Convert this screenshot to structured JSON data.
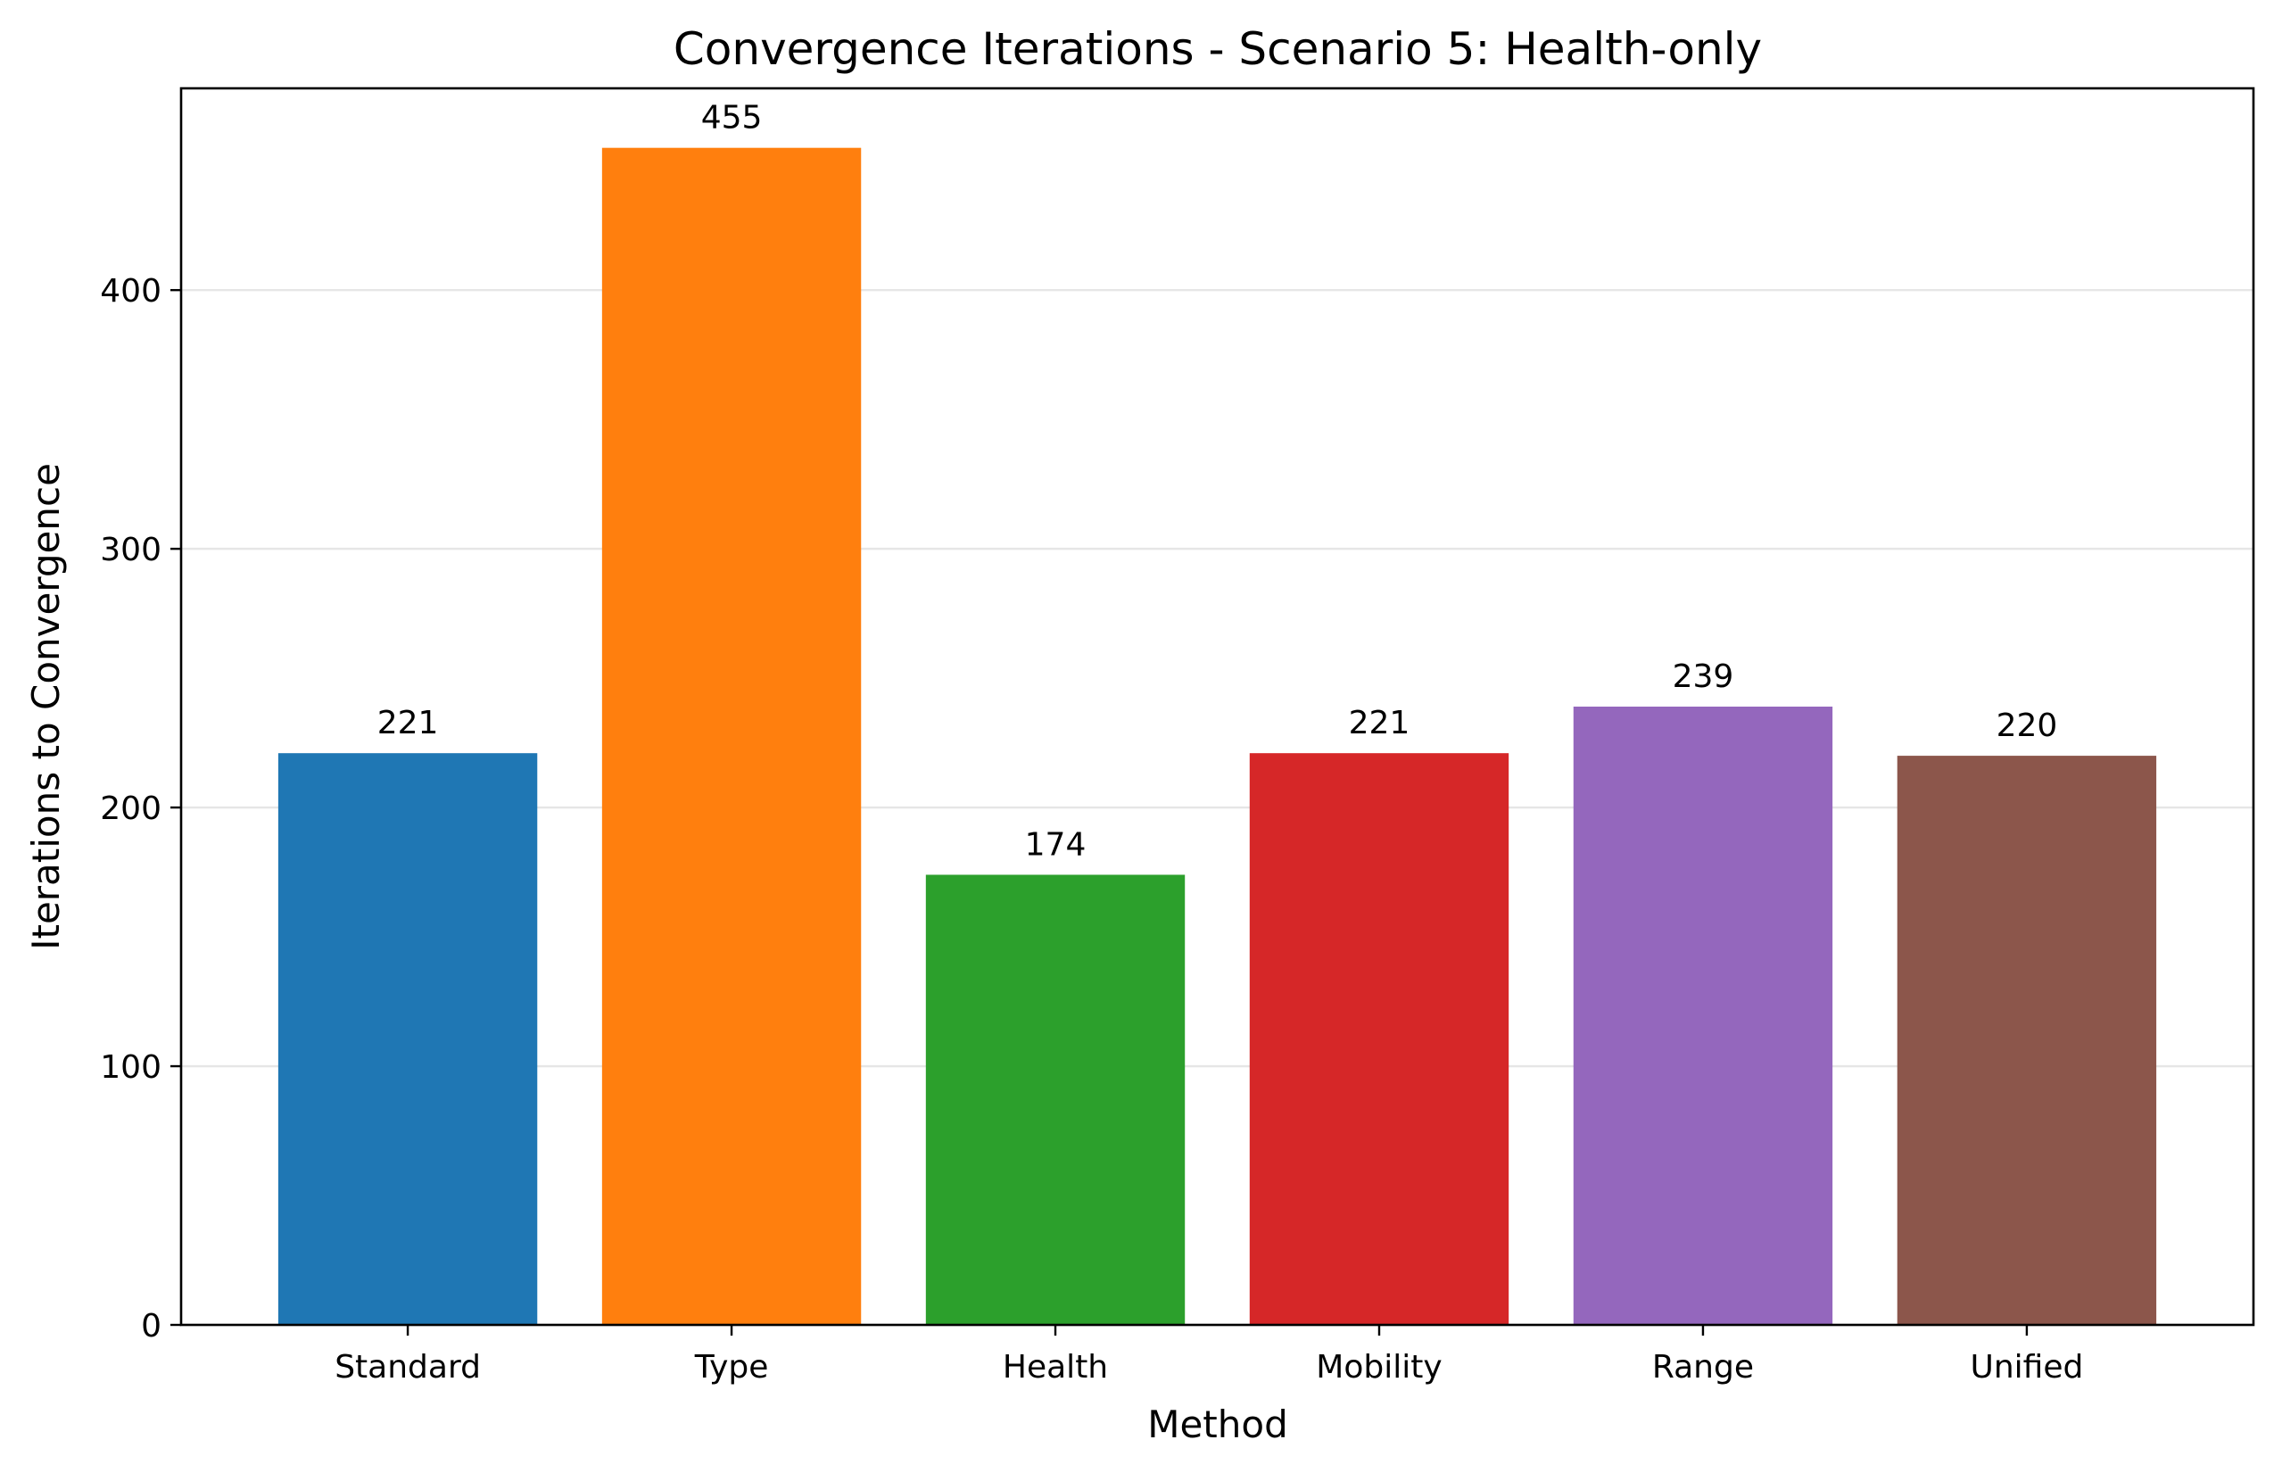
{
  "chart_data": {
    "type": "bar",
    "title": "Convergence Iterations - Scenario 5: Health-only",
    "xlabel": "Method",
    "ylabel": "Iterations to Convergence",
    "categories": [
      "Standard",
      "Type",
      "Health",
      "Mobility",
      "Range",
      "Unified"
    ],
    "values": [
      221,
      455,
      174,
      221,
      239,
      220
    ],
    "value_labels": [
      "221",
      "455",
      "174",
      "221",
      "239",
      "220"
    ],
    "colors": [
      "#1f77b4",
      "#ff7f0e",
      "#2ca02c",
      "#d62728",
      "#9467bd",
      "#8c564b"
    ],
    "ylim": [
      0,
      478
    ],
    "yticks": [
      0,
      100,
      200,
      300,
      400
    ],
    "ytick_labels": [
      "0",
      "100",
      "200",
      "300",
      "400"
    ],
    "grid": "y",
    "legend": "none"
  }
}
